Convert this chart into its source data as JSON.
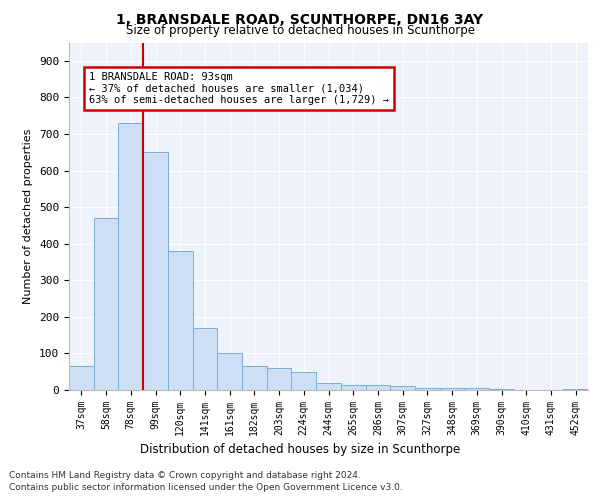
{
  "title": "1, BRANSDALE ROAD, SCUNTHORPE, DN16 3AY",
  "subtitle": "Size of property relative to detached houses in Scunthorpe",
  "xlabel": "Distribution of detached houses by size in Scunthorpe",
  "ylabel": "Number of detached properties",
  "bar_color": "#ccdff5",
  "bar_edge_color": "#7bafd4",
  "categories": [
    "37sqm",
    "58sqm",
    "78sqm",
    "99sqm",
    "120sqm",
    "141sqm",
    "161sqm",
    "182sqm",
    "203sqm",
    "224sqm",
    "244sqm",
    "265sqm",
    "286sqm",
    "307sqm",
    "327sqm",
    "348sqm",
    "369sqm",
    "390sqm",
    "410sqm",
    "431sqm",
    "452sqm"
  ],
  "values": [
    65,
    470,
    730,
    650,
    380,
    170,
    100,
    65,
    60,
    50,
    20,
    15,
    15,
    10,
    5,
    5,
    5,
    3,
    0,
    0,
    3
  ],
  "ylim": [
    0,
    950
  ],
  "yticks": [
    0,
    100,
    200,
    300,
    400,
    500,
    600,
    700,
    800,
    900
  ],
  "property_line_x": 2.5,
  "annotation_text": "1 BRANSDALE ROAD: 93sqm\n← 37% of detached houses are smaller (1,034)\n63% of semi-detached houses are larger (1,729) →",
  "annotation_box_color": "#ffffff",
  "annotation_box_edge": "#cc0000",
  "property_line_color": "#cc0000",
  "footer_line1": "Contains HM Land Registry data © Crown copyright and database right 2024.",
  "footer_line2": "Contains public sector information licensed under the Open Government Licence v3.0.",
  "background_color": "#eef3fb"
}
